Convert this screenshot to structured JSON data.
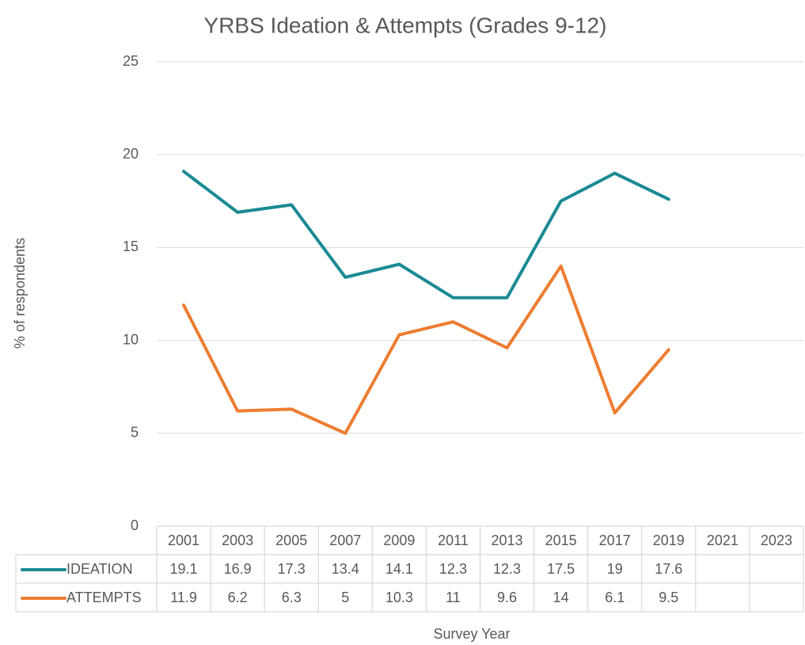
{
  "chart_data": {
    "type": "line",
    "title": "YRBS Ideation & Attempts (Grades 9-12)",
    "x_label": "Survey Year",
    "y_label": "% of respondents",
    "categories": [
      "2001",
      "2003",
      "2005",
      "2007",
      "2009",
      "2011",
      "2013",
      "2015",
      "2017",
      "2019",
      "2021",
      "2023"
    ],
    "series": [
      {
        "name": "IDEATION",
        "color": "#1a8a94",
        "values": [
          19.1,
          16.9,
          17.3,
          13.4,
          14.1,
          12.3,
          12.3,
          17.5,
          19,
          17.6,
          null,
          null
        ]
      },
      {
        "name": "ATTEMPTS",
        "color": "#ed7d31",
        "values": [
          11.9,
          6.2,
          6.3,
          5,
          10.3,
          11,
          9.6,
          14,
          6.1,
          9.5,
          null,
          null
        ]
      }
    ],
    "ylim": [
      0,
      25
    ],
    "yticks": [
      0,
      5,
      10,
      15,
      20,
      25
    ],
    "grid": true
  }
}
